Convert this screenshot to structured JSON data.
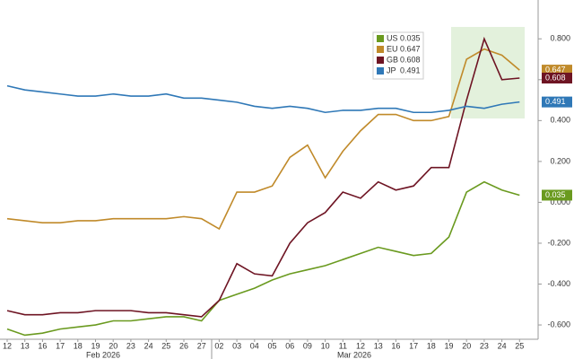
{
  "chart_data": {
    "type": "line",
    "categories": [
      "12",
      "13",
      "16",
      "17",
      "18",
      "19",
      "20",
      "23",
      "24",
      "25",
      "26",
      "27",
      "02",
      "03",
      "04",
      "05",
      "06",
      "09",
      "10",
      "11",
      "12",
      "13",
      "16",
      "17",
      "18",
      "19",
      "20",
      "23",
      "24",
      "25"
    ],
    "month_labels": [
      "Feb 2026",
      "Mar 2026"
    ],
    "series": [
      {
        "name": "US",
        "color": "#6a9a1f",
        "values": [
          -0.62,
          -0.65,
          -0.64,
          -0.62,
          -0.61,
          -0.6,
          -0.58,
          -0.58,
          -0.57,
          -0.56,
          -0.56,
          -0.58,
          -0.48,
          -0.45,
          -0.42,
          -0.38,
          -0.35,
          -0.33,
          -0.31,
          -0.28,
          -0.25,
          -0.22,
          -0.24,
          -0.26,
          -0.25,
          -0.17,
          0.05,
          0.1,
          0.06,
          0.035
        ]
      },
      {
        "name": "EU",
        "color": "#c08a2a",
        "values": [
          -0.08,
          -0.09,
          -0.1,
          -0.1,
          -0.09,
          -0.09,
          -0.08,
          -0.08,
          -0.08,
          -0.08,
          -0.07,
          -0.08,
          -0.13,
          0.05,
          0.05,
          0.08,
          0.22,
          0.28,
          0.12,
          0.25,
          0.35,
          0.43,
          0.43,
          0.4,
          0.4,
          0.42,
          0.7,
          0.75,
          0.72,
          0.647
        ]
      },
      {
        "name": "GB",
        "color": "#6e1423",
        "values": [
          -0.53,
          -0.55,
          -0.55,
          -0.54,
          -0.54,
          -0.53,
          -0.53,
          -0.53,
          -0.54,
          -0.54,
          -0.55,
          -0.56,
          -0.48,
          -0.3,
          -0.35,
          -0.36,
          -0.2,
          -0.1,
          -0.05,
          0.05,
          0.02,
          0.1,
          0.06,
          0.08,
          0.17,
          0.17,
          0.5,
          0.8,
          0.6,
          0.608
        ]
      },
      {
        "name": "JP",
        "color": "#2f78b7",
        "values": [
          0.57,
          0.55,
          0.54,
          0.53,
          0.52,
          0.52,
          0.53,
          0.52,
          0.52,
          0.53,
          0.51,
          0.51,
          0.5,
          0.49,
          0.47,
          0.46,
          0.47,
          0.46,
          0.44,
          0.45,
          0.45,
          0.46,
          0.46,
          0.44,
          0.44,
          0.45,
          0.47,
          0.46,
          0.48,
          0.491
        ]
      }
    ],
    "ylim": [
      -0.67,
      0.99
    ],
    "yticks": [
      {
        "value": -0.6,
        "label": "-0.600"
      },
      {
        "value": -0.4,
        "label": "-0.400"
      },
      {
        "value": -0.2,
        "label": "-0.200"
      },
      {
        "value": 0,
        "label": "0.000"
      },
      {
        "value": 0.2,
        "label": "0.200"
      },
      {
        "value": 0.4,
        "label": "0.400"
      },
      {
        "value": 0.6,
        "label": "0.600"
      },
      {
        "value": 0.8,
        "label": "0.800"
      }
    ],
    "grid": false
  }
}
